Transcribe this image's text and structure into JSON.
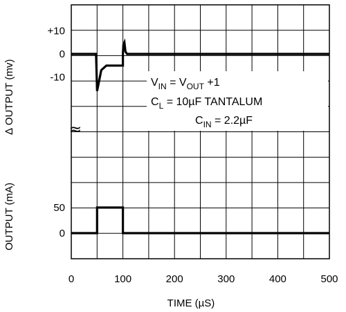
{
  "chart_data": {
    "type": "line",
    "title": "",
    "xlabel": "TIME (µS)",
    "xlim": [
      0,
      500
    ],
    "x_ticks": [
      "0",
      "100",
      "200",
      "300",
      "400",
      "500"
    ],
    "grid": true,
    "panels": [
      {
        "id": "delta-output",
        "ylabel": "∆ OUTPUT (mv)",
        "y_ticks": [
          {
            "label": "+10",
            "value": 10
          },
          {
            "label": "0",
            "value": 0
          },
          {
            "label": "-10",
            "value": -10
          }
        ],
        "series": [
          {
            "x": [
              0,
              45,
              48,
              50,
              58,
              68,
              100,
              100,
              101,
              103,
              105,
              108,
              500
            ],
            "y": [
              0,
              0,
              0,
              -16,
              -7,
              -5,
              -5,
              0,
              4,
              5,
              1,
              0,
              0
            ]
          }
        ]
      },
      {
        "id": "output-current",
        "ylabel": "OUTPUT (mA)",
        "y_ticks": [
          {
            "label": "50",
            "value": 50
          },
          {
            "label": "0",
            "value": 0
          }
        ],
        "series": [
          {
            "x": [
              0,
              50,
              50,
              100,
              100,
              500
            ],
            "y": [
              0,
              0,
              50,
              50,
              0,
              0
            ]
          }
        ]
      }
    ],
    "annotations": {
      "vin": {
        "main": "V",
        "sub": "IN",
        "eq": " = V",
        "sub2": "OUT",
        "tail": " +1"
      },
      "cl": {
        "main": "C",
        "sub": "L",
        "tail": " =  10µF TANTALUM"
      },
      "cin": {
        "main": "C",
        "sub": "IN",
        "tail": " = 2.2µF"
      }
    },
    "break_mark": "≈"
  }
}
